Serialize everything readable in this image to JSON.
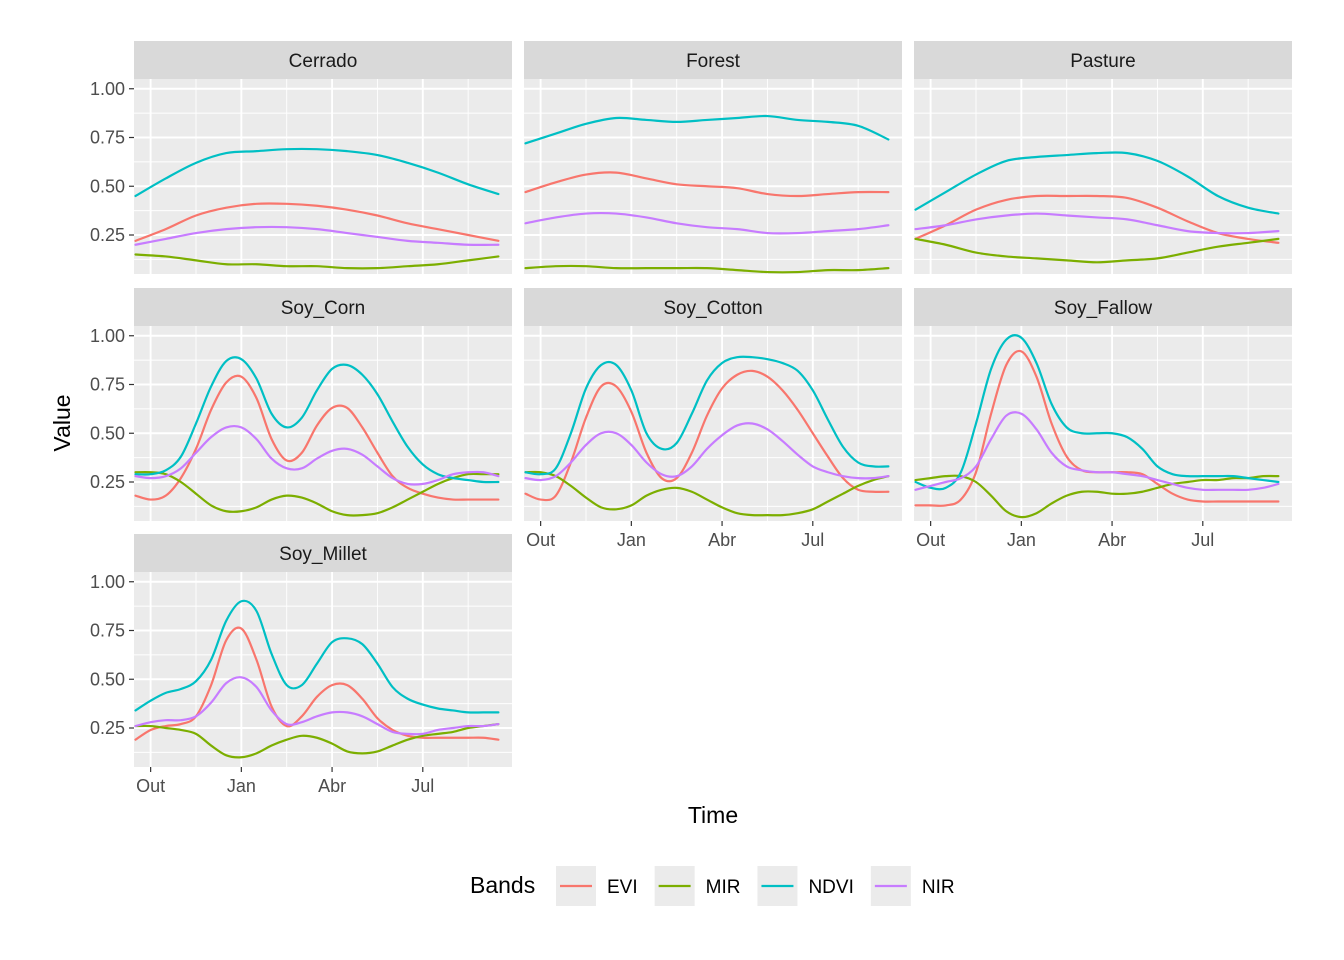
{
  "chart_data": {
    "type": "line",
    "xlabel": "Time",
    "ylabel": "Value",
    "y_ticks": [
      "0.25",
      "0.50",
      "0.75",
      "1.00"
    ],
    "y_tick_values": [
      0.25,
      0.5,
      0.75,
      1.0
    ],
    "ylim": [
      0.05,
      1.05
    ],
    "x_ticks": [
      "Out",
      "Jan",
      "Abr",
      "Jul"
    ],
    "x_tick_values": [
      0,
      3,
      6,
      9
    ],
    "xlim": [
      -0.55,
      11.95
    ],
    "x_unit_note": "months from October",
    "legend": {
      "title": "Bands",
      "position": "bottom",
      "entries": [
        {
          "name": "EVI",
          "color": "#F8766D"
        },
        {
          "name": "MIR",
          "color": "#7CAE00"
        },
        {
          "name": "NDVI",
          "color": "#00BFC4"
        },
        {
          "name": "NIR",
          "color": "#C77CFF"
        }
      ]
    },
    "facets": [
      {
        "name": "Cerrado",
        "x": [
          -0.5,
          0.5,
          1.5,
          2.5,
          3.5,
          4.5,
          5.5,
          6.5,
          7.5,
          8.5,
          9.5,
          10.5,
          11.5
        ],
        "series": {
          "EVI": [
            0.22,
            0.28,
            0.35,
            0.39,
            0.41,
            0.41,
            0.4,
            0.38,
            0.35,
            0.31,
            0.28,
            0.25,
            0.22
          ],
          "MIR": [
            0.15,
            0.14,
            0.12,
            0.1,
            0.1,
            0.09,
            0.09,
            0.08,
            0.08,
            0.09,
            0.1,
            0.12,
            0.14
          ],
          "NDVI": [
            0.45,
            0.54,
            0.62,
            0.67,
            0.68,
            0.69,
            0.69,
            0.68,
            0.66,
            0.62,
            0.57,
            0.51,
            0.46
          ],
          "NIR": [
            0.2,
            0.23,
            0.26,
            0.28,
            0.29,
            0.29,
            0.28,
            0.26,
            0.24,
            0.22,
            0.21,
            0.2,
            0.2
          ]
        }
      },
      {
        "name": "Forest",
        "x": [
          -0.5,
          0.5,
          1.5,
          2.5,
          3.5,
          4.5,
          5.5,
          6.5,
          7.5,
          8.5,
          9.5,
          10.5,
          11.5
        ],
        "series": {
          "EVI": [
            0.47,
            0.52,
            0.56,
            0.57,
            0.54,
            0.51,
            0.5,
            0.49,
            0.46,
            0.45,
            0.46,
            0.47,
            0.47
          ],
          "MIR": [
            0.08,
            0.09,
            0.09,
            0.08,
            0.08,
            0.08,
            0.08,
            0.07,
            0.06,
            0.06,
            0.07,
            0.07,
            0.08
          ],
          "NDVI": [
            0.72,
            0.77,
            0.82,
            0.85,
            0.84,
            0.83,
            0.84,
            0.85,
            0.86,
            0.84,
            0.83,
            0.81,
            0.74
          ],
          "NIR": [
            0.31,
            0.34,
            0.36,
            0.36,
            0.34,
            0.31,
            0.29,
            0.28,
            0.26,
            0.26,
            0.27,
            0.28,
            0.3
          ]
        }
      },
      {
        "name": "Pasture",
        "x": [
          -0.5,
          0.5,
          1.5,
          2.5,
          3.5,
          4.5,
          5.5,
          6.5,
          7.5,
          8.5,
          9.5,
          10.5,
          11.5
        ],
        "series": {
          "EVI": [
            0.23,
            0.3,
            0.38,
            0.43,
            0.45,
            0.45,
            0.45,
            0.44,
            0.39,
            0.32,
            0.26,
            0.23,
            0.21
          ],
          "MIR": [
            0.23,
            0.2,
            0.16,
            0.14,
            0.13,
            0.12,
            0.11,
            0.12,
            0.13,
            0.16,
            0.19,
            0.21,
            0.23
          ],
          "NDVI": [
            0.38,
            0.47,
            0.56,
            0.63,
            0.65,
            0.66,
            0.67,
            0.67,
            0.63,
            0.55,
            0.45,
            0.39,
            0.36
          ],
          "NIR": [
            0.28,
            0.3,
            0.33,
            0.35,
            0.36,
            0.35,
            0.34,
            0.33,
            0.3,
            0.27,
            0.26,
            0.26,
            0.27
          ]
        }
      },
      {
        "name": "Soy_Corn",
        "x": [
          -0.5,
          0,
          0.5,
          1,
          1.5,
          2,
          2.5,
          3,
          3.5,
          4,
          4.5,
          5,
          5.5,
          6,
          6.5,
          7,
          7.5,
          8,
          8.5,
          9,
          9.5,
          10,
          10.5,
          11,
          11.5
        ],
        "series": {
          "EVI": [
            0.18,
            0.16,
            0.18,
            0.27,
            0.42,
            0.62,
            0.76,
            0.79,
            0.68,
            0.47,
            0.36,
            0.4,
            0.54,
            0.63,
            0.63,
            0.53,
            0.4,
            0.28,
            0.22,
            0.19,
            0.17,
            0.16,
            0.16,
            0.16,
            0.16
          ],
          "MIR": [
            0.3,
            0.3,
            0.29,
            0.25,
            0.19,
            0.13,
            0.1,
            0.1,
            0.12,
            0.16,
            0.18,
            0.17,
            0.14,
            0.1,
            0.08,
            0.08,
            0.09,
            0.12,
            0.16,
            0.2,
            0.24,
            0.27,
            0.29,
            0.29,
            0.29
          ],
          "NDVI": [
            0.29,
            0.29,
            0.31,
            0.38,
            0.55,
            0.74,
            0.87,
            0.88,
            0.78,
            0.6,
            0.53,
            0.58,
            0.72,
            0.83,
            0.85,
            0.8,
            0.7,
            0.56,
            0.43,
            0.34,
            0.29,
            0.27,
            0.26,
            0.25,
            0.25
          ],
          "NIR": [
            0.28,
            0.27,
            0.28,
            0.32,
            0.4,
            0.48,
            0.53,
            0.53,
            0.47,
            0.37,
            0.32,
            0.32,
            0.37,
            0.41,
            0.42,
            0.39,
            0.33,
            0.27,
            0.24,
            0.24,
            0.26,
            0.29,
            0.3,
            0.3,
            0.28
          ]
        }
      },
      {
        "name": "Soy_Cotton",
        "x": [
          -0.5,
          0,
          0.5,
          1,
          1.5,
          2,
          2.5,
          3,
          3.5,
          4,
          4.5,
          5,
          5.5,
          6,
          6.5,
          7,
          7.5,
          8,
          8.5,
          9,
          9.5,
          10,
          10.5,
          11,
          11.5
        ],
        "series": {
          "EVI": [
            0.19,
            0.16,
            0.18,
            0.35,
            0.58,
            0.74,
            0.74,
            0.61,
            0.4,
            0.27,
            0.27,
            0.4,
            0.59,
            0.73,
            0.8,
            0.82,
            0.79,
            0.72,
            0.62,
            0.5,
            0.38,
            0.27,
            0.21,
            0.2,
            0.2
          ],
          "MIR": [
            0.3,
            0.3,
            0.28,
            0.23,
            0.17,
            0.12,
            0.11,
            0.13,
            0.18,
            0.21,
            0.22,
            0.2,
            0.16,
            0.12,
            0.09,
            0.08,
            0.08,
            0.08,
            0.09,
            0.11,
            0.15,
            0.19,
            0.23,
            0.26,
            0.28
          ],
          "NDVI": [
            0.3,
            0.29,
            0.32,
            0.5,
            0.73,
            0.85,
            0.85,
            0.72,
            0.5,
            0.42,
            0.45,
            0.6,
            0.77,
            0.86,
            0.89,
            0.89,
            0.88,
            0.86,
            0.82,
            0.72,
            0.57,
            0.43,
            0.35,
            0.33,
            0.33
          ],
          "NIR": [
            0.27,
            0.26,
            0.28,
            0.35,
            0.44,
            0.5,
            0.5,
            0.44,
            0.35,
            0.29,
            0.28,
            0.33,
            0.42,
            0.49,
            0.54,
            0.55,
            0.52,
            0.46,
            0.39,
            0.33,
            0.3,
            0.28,
            0.27,
            0.27,
            0.28
          ]
        }
      },
      {
        "name": "Soy_Fallow",
        "x": [
          -0.5,
          0,
          0.5,
          1,
          1.5,
          2,
          2.5,
          3,
          3.5,
          4,
          4.5,
          5,
          5.5,
          6,
          6.5,
          7,
          7.5,
          8,
          8.5,
          9,
          9.5,
          10,
          10.5,
          11,
          11.5
        ],
        "series": {
          "EVI": [
            0.13,
            0.13,
            0.13,
            0.16,
            0.3,
            0.6,
            0.85,
            0.92,
            0.79,
            0.55,
            0.38,
            0.31,
            0.3,
            0.3,
            0.3,
            0.29,
            0.24,
            0.19,
            0.16,
            0.15,
            0.15,
            0.15,
            0.15,
            0.15,
            0.15
          ],
          "MIR": [
            0.26,
            0.27,
            0.28,
            0.28,
            0.25,
            0.18,
            0.1,
            0.07,
            0.09,
            0.14,
            0.18,
            0.2,
            0.2,
            0.19,
            0.19,
            0.2,
            0.22,
            0.24,
            0.25,
            0.26,
            0.26,
            0.27,
            0.27,
            0.28,
            0.28
          ],
          "NDVI": [
            0.25,
            0.22,
            0.22,
            0.3,
            0.55,
            0.83,
            0.98,
            0.99,
            0.86,
            0.65,
            0.53,
            0.5,
            0.5,
            0.5,
            0.48,
            0.42,
            0.33,
            0.29,
            0.28,
            0.28,
            0.28,
            0.28,
            0.27,
            0.26,
            0.25
          ],
          "NIR": [
            0.21,
            0.23,
            0.25,
            0.27,
            0.33,
            0.47,
            0.59,
            0.6,
            0.52,
            0.4,
            0.33,
            0.31,
            0.3,
            0.3,
            0.29,
            0.28,
            0.26,
            0.24,
            0.22,
            0.21,
            0.21,
            0.21,
            0.21,
            0.22,
            0.24
          ]
        }
      },
      {
        "name": "Soy_Millet",
        "x": [
          -0.5,
          0,
          0.5,
          1,
          1.5,
          2,
          2.5,
          3,
          3.5,
          4,
          4.5,
          5,
          5.5,
          6,
          6.5,
          7,
          7.5,
          8,
          8.5,
          9,
          9.5,
          10,
          10.5,
          11,
          11.5
        ],
        "series": {
          "EVI": [
            0.19,
            0.24,
            0.26,
            0.27,
            0.31,
            0.47,
            0.7,
            0.76,
            0.6,
            0.36,
            0.26,
            0.31,
            0.41,
            0.47,
            0.47,
            0.4,
            0.3,
            0.24,
            0.21,
            0.2,
            0.2,
            0.2,
            0.2,
            0.2,
            0.19
          ],
          "MIR": [
            0.26,
            0.26,
            0.25,
            0.24,
            0.22,
            0.16,
            0.11,
            0.1,
            0.12,
            0.16,
            0.19,
            0.21,
            0.2,
            0.17,
            0.13,
            0.12,
            0.13,
            0.16,
            0.19,
            0.21,
            0.22,
            0.23,
            0.25,
            0.26,
            0.27
          ],
          "NDVI": [
            0.34,
            0.39,
            0.43,
            0.45,
            0.49,
            0.6,
            0.8,
            0.9,
            0.85,
            0.63,
            0.47,
            0.47,
            0.58,
            0.69,
            0.71,
            0.68,
            0.58,
            0.46,
            0.4,
            0.37,
            0.35,
            0.34,
            0.33,
            0.33,
            0.33
          ],
          "NIR": [
            0.26,
            0.28,
            0.29,
            0.29,
            0.31,
            0.38,
            0.48,
            0.51,
            0.46,
            0.34,
            0.27,
            0.28,
            0.31,
            0.33,
            0.33,
            0.31,
            0.27,
            0.23,
            0.22,
            0.22,
            0.24,
            0.25,
            0.26,
            0.26,
            0.27
          ]
        }
      }
    ]
  }
}
